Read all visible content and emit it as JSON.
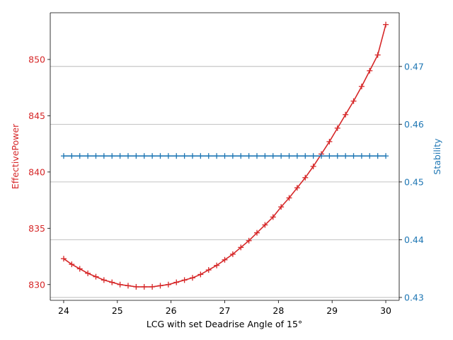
{
  "chart_data": {
    "type": "line",
    "xlabel": "LCG with set Deadrise Angle of 15°",
    "ylabel_left": "EffectivePower",
    "ylabel_right": "Stability",
    "xlim": [
      23.75,
      30.25
    ],
    "ylim_left": [
      828.6,
      854.15
    ],
    "ylim_right": [
      0.4295,
      0.4793
    ],
    "x_ticks": [
      24,
      25,
      26,
      27,
      28,
      29,
      30
    ],
    "y_ticks_left": [
      830,
      835,
      840,
      845,
      850
    ],
    "y_ticks_right": [
      0.43,
      0.44,
      0.45,
      0.46,
      0.47
    ],
    "grid": "horizontal (right axis)",
    "colors": {
      "left": "#d62728",
      "right": "#1f77b4",
      "grid": "#b0b0b0"
    },
    "series": [
      {
        "axis": "left",
        "marker": "plus",
        "x": [
          24.0,
          24.15,
          24.3,
          24.45,
          24.6,
          24.75,
          24.9,
          25.05,
          25.2,
          25.35,
          25.5,
          25.65,
          25.8,
          25.95,
          26.1,
          26.25,
          26.4,
          26.55,
          26.7,
          26.85,
          27.0,
          27.15,
          27.3,
          27.45,
          27.6,
          27.75,
          27.9,
          28.05,
          28.2,
          28.35,
          28.5,
          28.65,
          28.8,
          28.95,
          29.1,
          29.25,
          29.4,
          29.55,
          29.7,
          29.85,
          30.0
        ],
        "values": [
          832.3,
          831.8,
          831.4,
          831.0,
          830.7,
          830.4,
          830.2,
          830.0,
          829.9,
          829.8,
          829.8,
          829.8,
          829.9,
          830.0,
          830.2,
          830.4,
          830.6,
          830.9,
          831.3,
          831.7,
          832.2,
          832.7,
          833.3,
          833.9,
          834.6,
          835.3,
          836.0,
          836.9,
          837.7,
          838.6,
          839.5,
          840.5,
          841.6,
          842.7,
          843.9,
          845.1,
          846.3,
          847.6,
          849.0,
          850.4,
          853.1
        ]
      },
      {
        "axis": "right",
        "marker": "plus",
        "x": [
          24.0,
          24.15,
          24.3,
          24.45,
          24.6,
          24.75,
          24.9,
          25.05,
          25.2,
          25.35,
          25.5,
          25.65,
          25.8,
          25.95,
          26.1,
          26.25,
          26.4,
          26.55,
          26.7,
          26.85,
          27.0,
          27.15,
          27.3,
          27.45,
          27.6,
          27.75,
          27.9,
          28.05,
          28.2,
          28.35,
          28.5,
          28.65,
          28.8,
          28.95,
          29.1,
          29.25,
          29.4,
          29.55,
          29.7,
          29.85,
          30.0
        ],
        "values": [
          0.4545,
          0.4545,
          0.4545,
          0.4545,
          0.4545,
          0.4545,
          0.4545,
          0.4545,
          0.4545,
          0.4545,
          0.4545,
          0.4545,
          0.4545,
          0.4545,
          0.4545,
          0.4545,
          0.4545,
          0.4545,
          0.4545,
          0.4545,
          0.4545,
          0.4545,
          0.4545,
          0.4545,
          0.4545,
          0.4545,
          0.4545,
          0.4545,
          0.4545,
          0.4545,
          0.4545,
          0.4545,
          0.4545,
          0.4545,
          0.4545,
          0.4545,
          0.4545,
          0.4545,
          0.4545,
          0.4545,
          0.4545
        ]
      }
    ]
  }
}
